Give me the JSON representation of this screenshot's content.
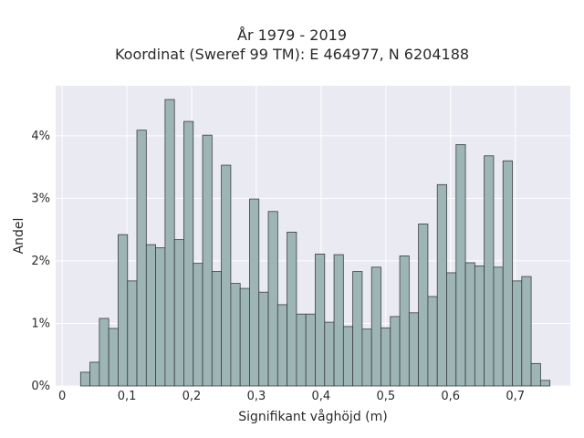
{
  "chart_data": {
    "type": "bar",
    "title": "År 1979 - 2019",
    "subtitle": "Koordinat (Sweref 99 TM): E 464977, N 6204188",
    "xlabel": "Signifikant våghöjd (m)",
    "ylabel": "Andel",
    "xlim": [
      -0.01,
      0.785
    ],
    "ylim": [
      0,
      0.048
    ],
    "xticks": [
      {
        "value": 0,
        "label": "0"
      },
      {
        "value": 0.1,
        "label": "0,1"
      },
      {
        "value": 0.2,
        "label": "0,2"
      },
      {
        "value": 0.3,
        "label": "0,3"
      },
      {
        "value": 0.4,
        "label": "0,4"
      },
      {
        "value": 0.5,
        "label": "0,5"
      },
      {
        "value": 0.6,
        "label": "0,6"
      },
      {
        "value": 0.7,
        "label": "0,7"
      }
    ],
    "yticks": [
      {
        "value": 0,
        "label": "0%"
      },
      {
        "value": 0.01,
        "label": "1%"
      },
      {
        "value": 0.02,
        "label": "2%"
      },
      {
        "value": 0.03,
        "label": "3%"
      },
      {
        "value": 0.04,
        "label": "4%"
      }
    ],
    "bin_width": 0.0145,
    "bin_start": 0.0285,
    "values": [
      0.0022,
      0.0038,
      0.0108,
      0.0092,
      0.0242,
      0.0168,
      0.0409,
      0.0226,
      0.0221,
      0.0458,
      0.0234,
      0.0423,
      0.0196,
      0.0401,
      0.0183,
      0.0353,
      0.0164,
      0.0156,
      0.0299,
      0.015,
      0.0279,
      0.013,
      0.0246,
      0.0115,
      0.0115,
      0.0211,
      0.0102,
      0.021,
      0.0095,
      0.0183,
      0.0091,
      0.019,
      0.0093,
      0.0111,
      0.0208,
      0.0117,
      0.0259,
      0.0143,
      0.0322,
      0.0181,
      0.0386,
      0.0197,
      0.0192,
      0.0368,
      0.019,
      0.036,
      0.0168,
      0.0175,
      0.0036,
      0.0009
    ],
    "grid": true,
    "colors": {
      "bar_fill": "#9db5b5",
      "bar_edge": "#3a3f3f",
      "plot_bg": "#eaeaf2",
      "grid": "#ffffff"
    }
  }
}
